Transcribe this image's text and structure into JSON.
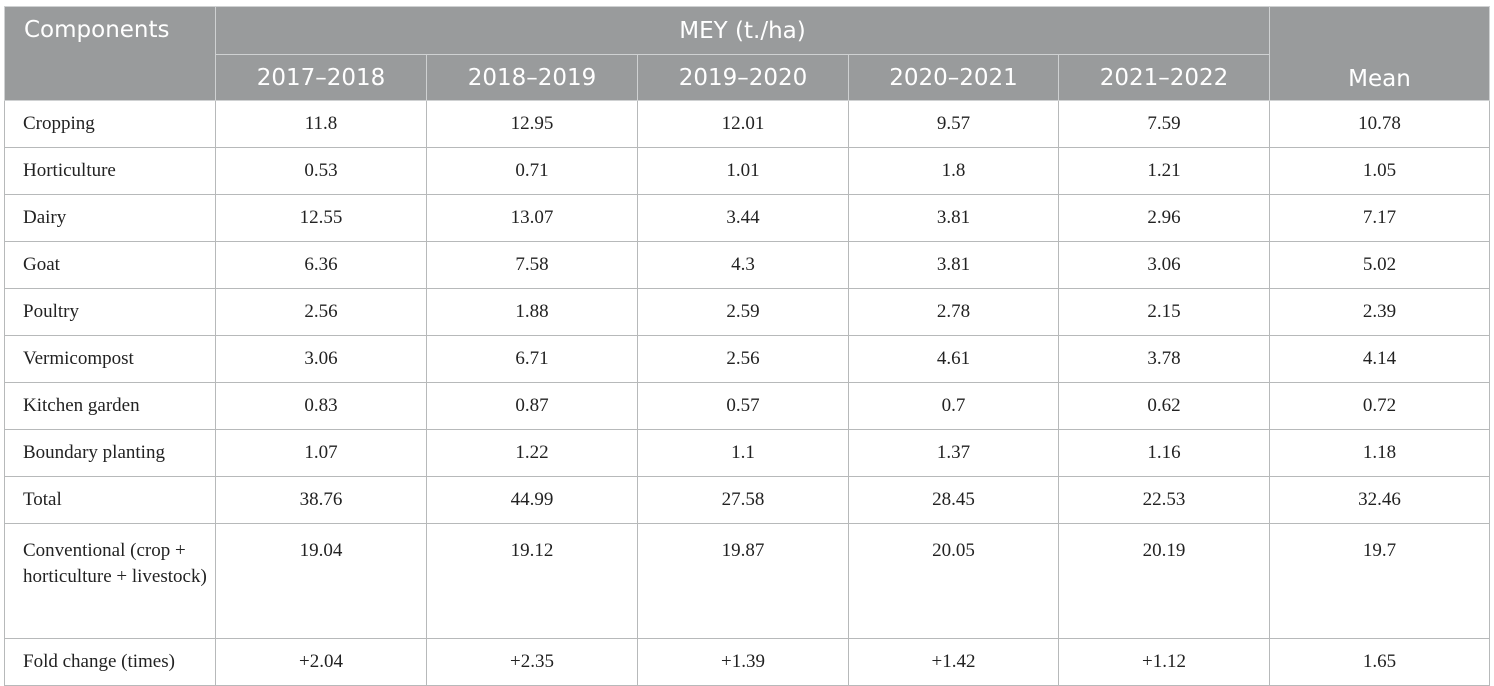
{
  "table": {
    "header": {
      "components_label": "Components",
      "group_label": "MEY (t./ha)",
      "years": [
        "2017–2018",
        "2018–2019",
        "2019–2020",
        "2020–2021",
        "2021–2022"
      ],
      "mean_label": "Mean"
    },
    "rows": [
      {
        "label": "Cropping",
        "values": [
          "11.8",
          "12.95",
          "12.01",
          "9.57",
          "7.59",
          "10.78"
        ]
      },
      {
        "label": "Horticulture",
        "values": [
          "0.53",
          "0.71",
          "1.01",
          "1.8",
          "1.21",
          "1.05"
        ]
      },
      {
        "label": "Dairy",
        "values": [
          "12.55",
          "13.07",
          "3.44",
          "3.81",
          "2.96",
          "7.17"
        ]
      },
      {
        "label": "Goat",
        "values": [
          "6.36",
          "7.58",
          "4.3",
          "3.81",
          "3.06",
          "5.02"
        ]
      },
      {
        "label": "Poultry",
        "values": [
          "2.56",
          "1.88",
          "2.59",
          "2.78",
          "2.15",
          "2.39"
        ]
      },
      {
        "label": "Vermicompost",
        "values": [
          "3.06",
          "6.71",
          "2.56",
          "4.61",
          "3.78",
          "4.14"
        ]
      },
      {
        "label": "Kitchen garden",
        "values": [
          "0.83",
          "0.87",
          "0.57",
          "0.7",
          "0.62",
          "0.72"
        ]
      },
      {
        "label": "Boundary planting",
        "values": [
          "1.07",
          "1.22",
          "1.1",
          "1.37",
          "1.16",
          "1.18"
        ]
      },
      {
        "label": "Total",
        "values": [
          "38.76",
          "44.99",
          "27.58",
          "28.45",
          "22.53",
          "32.46"
        ]
      },
      {
        "label": "Conventional (crop + horticulture + livestock)",
        "values": [
          "19.04",
          "19.12",
          "19.87",
          "20.05",
          "20.19",
          "19.7"
        ]
      },
      {
        "label": "Fold change (times)",
        "values": [
          "+2.04",
          "+2.35",
          "+1.39",
          "+1.42",
          "+1.12",
          "1.65"
        ]
      }
    ]
  }
}
